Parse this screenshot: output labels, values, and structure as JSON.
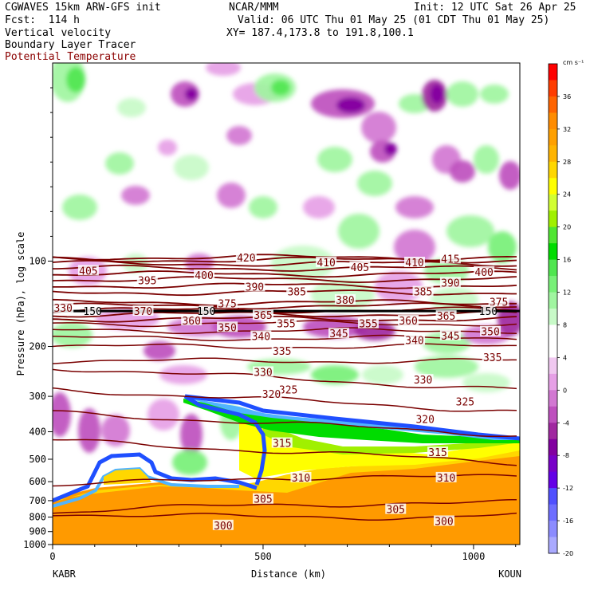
{
  "header": {
    "model": "CGWAVES 15km ARW-GFS init",
    "org": "NCAR/MMM",
    "init": "Init: 12 UTC Sat 26 Apr 25",
    "fcst": "Fcst:  114 h",
    "valid": "Valid: 06 UTC Thu 01 May 25 (01 CDT Thu 01 May 25)",
    "field1": "Vertical velocity",
    "field2": "Boundary Layer Tracer",
    "field3": "Potential Temperature",
    "xy": "XY= 187.4,173.8 to 191.8,100.1"
  },
  "colors": {
    "theta": "#7a0000",
    "tracer_blue": "#1f4fff",
    "field3_text": "#8b0000"
  },
  "chart_data": {
    "type": "heatmap",
    "xlabel": "Distance (km)",
    "ylabel": "Pressure (hPa), log scale",
    "xlim": [
      0,
      1110
    ],
    "ylim": [
      1000,
      20
    ],
    "y_scale": "log",
    "x_ticks": [
      0,
      500,
      1000
    ],
    "y_ticks": [
      100,
      200,
      300,
      400,
      500,
      600,
      700,
      800,
      900,
      1000
    ],
    "x_endpoints": {
      "left": "KABR",
      "right": "KOUN"
    },
    "colorbar": {
      "units": "cm s⁻¹",
      "tick_labels": [
        36,
        32,
        28,
        24,
        20,
        16,
        12,
        8,
        4,
        0,
        -4,
        -8,
        -12,
        -16,
        -20
      ],
      "colors": [
        "#ff0000",
        "#ff3c00",
        "#ff6400",
        "#ff8c00",
        "#ffa000",
        "#ffb400",
        "#ffd700",
        "#ffff00",
        "#d2ff32",
        "#a0f000",
        "#50e632",
        "#00dc00",
        "#50e650",
        "#78f078",
        "#a0f5a0",
        "#c8fac8",
        "#ffffff",
        "#ffffff",
        "#f0c8f0",
        "#e6a0e6",
        "#d278d2",
        "#be50be",
        "#a028a0",
        "#8200a0",
        "#7800c8",
        "#6400e6",
        "#5050ff",
        "#6e6eff",
        "#8c8cff",
        "#aaaaff"
      ]
    },
    "isentropes": [
      {
        "theta": 300,
        "p": 800
      },
      {
        "theta": 305,
        "p": 720
      },
      {
        "theta": 310,
        "p": 580
      },
      {
        "theta": 315,
        "p": 470
      },
      {
        "theta": 320,
        "p": 375
      },
      {
        "theta": 325,
        "p": 310
      },
      {
        "theta": 330,
        "p": 260
      },
      {
        "theta": 335,
        "p": 225
      },
      {
        "theta": 340,
        "p": 200
      },
      {
        "theta": 345,
        "p": 187
      },
      {
        "theta": 350,
        "p": 176
      },
      {
        "theta": 355,
        "p": 166
      },
      {
        "theta": 360,
        "p": 160
      },
      {
        "theta": 365,
        "p": 154
      },
      {
        "theta": 370,
        "p": 149
      },
      {
        "theta": 375,
        "p": 144
      },
      {
        "theta": 380,
        "p": 140
      },
      {
        "theta": 385,
        "p": 129
      },
      {
        "theta": 390,
        "p": 122
      },
      {
        "theta": 395,
        "p": 116
      },
      {
        "theta": 400,
        "p": 111
      },
      {
        "theta": 405,
        "p": 106
      },
      {
        "theta": 410,
        "p": 102
      },
      {
        "theta": 415,
        "p": 99
      },
      {
        "theta": 420,
        "p": 97
      }
    ],
    "labels": [
      {
        "text": "420",
        "x": 460,
        "p": 97
      },
      {
        "text": "410",
        "x": 650,
        "p": 101
      },
      {
        "text": "410",
        "x": 860,
        "p": 101
      },
      {
        "text": "415",
        "x": 945,
        "p": 98
      },
      {
        "text": "405",
        "x": 85,
        "p": 108
      },
      {
        "text": "405",
        "x": 730,
        "p": 105
      },
      {
        "text": "400",
        "x": 360,
        "p": 112
      },
      {
        "text": "400",
        "x": 1025,
        "p": 109
      },
      {
        "text": "395",
        "x": 225,
        "p": 117
      },
      {
        "text": "390",
        "x": 480,
        "p": 123
      },
      {
        "text": "390",
        "x": 945,
        "p": 119
      },
      {
        "text": "385",
        "x": 580,
        "p": 128
      },
      {
        "text": "385",
        "x": 880,
        "p": 128
      },
      {
        "text": "380",
        "x": 695,
        "p": 137
      },
      {
        "text": "375",
        "x": 415,
        "p": 141
      },
      {
        "text": "375",
        "x": 1060,
        "p": 139
      },
      {
        "text": "330",
        "x": 25,
        "p": 146
      },
      {
        "text": "370",
        "x": 215,
        "p": 150
      },
      {
        "text": "150",
        "x": 95,
        "p": 150
      },
      {
        "text": "150",
        "x": 365,
        "p": 150
      },
      {
        "text": "150",
        "x": 1035,
        "p": 150
      },
      {
        "text": "365",
        "x": 500,
        "p": 155
      },
      {
        "text": "365",
        "x": 935,
        "p": 156
      },
      {
        "text": "360",
        "x": 330,
        "p": 162
      },
      {
        "text": "360",
        "x": 845,
        "p": 162
      },
      {
        "text": "355",
        "x": 555,
        "p": 166
      },
      {
        "text": "355",
        "x": 750,
        "p": 166
      },
      {
        "text": "350",
        "x": 415,
        "p": 171
      },
      {
        "text": "350",
        "x": 1040,
        "p": 177
      },
      {
        "text": "345",
        "x": 680,
        "p": 180
      },
      {
        "text": "345",
        "x": 945,
        "p": 183
      },
      {
        "text": "340",
        "x": 495,
        "p": 184
      },
      {
        "text": "340",
        "x": 860,
        "p": 190
      },
      {
        "text": "335",
        "x": 545,
        "p": 207
      },
      {
        "text": "335",
        "x": 1045,
        "p": 218
      },
      {
        "text": "330",
        "x": 500,
        "p": 246
      },
      {
        "text": "330",
        "x": 880,
        "p": 262
      },
      {
        "text": "325",
        "x": 560,
        "p": 284
      },
      {
        "text": "325",
        "x": 980,
        "p": 313
      },
      {
        "text": "320",
        "x": 520,
        "p": 294
      },
      {
        "text": "320",
        "x": 885,
        "p": 360
      },
      {
        "text": "315",
        "x": 545,
        "p": 438
      },
      {
        "text": "315",
        "x": 915,
        "p": 472
      },
      {
        "text": "310",
        "x": 590,
        "p": 580
      },
      {
        "text": "310",
        "x": 935,
        "p": 580
      },
      {
        "text": "305",
        "x": 500,
        "p": 690
      },
      {
        "text": "305",
        "x": 815,
        "p": 750
      },
      {
        "text": "300",
        "x": 405,
        "p": 855
      },
      {
        "text": "300",
        "x": 930,
        "p": 826
      }
    ]
  }
}
